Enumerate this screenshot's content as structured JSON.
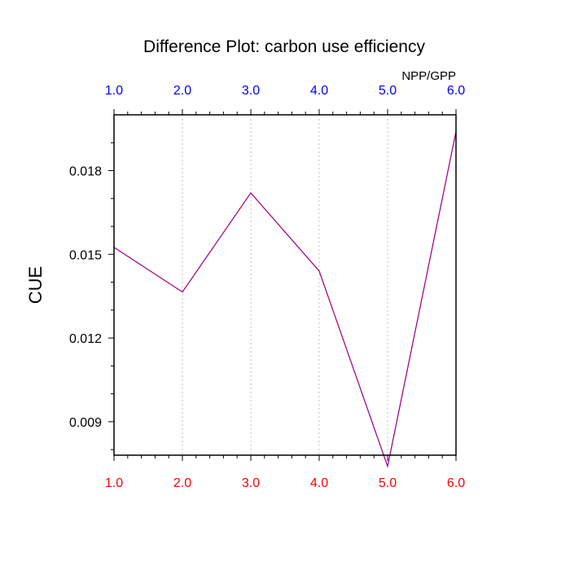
{
  "chart_data": {
    "type": "line",
    "title": "Difference Plot: carbon use efficiency",
    "xlabel": "",
    "ylabel": "CUE",
    "top_axis_annotation": "NPP/GPP",
    "x": [
      1.0,
      2.0,
      3.0,
      4.0,
      5.0,
      6.0
    ],
    "x_tick_labels": [
      "1.0",
      "2.0",
      "3.0",
      "4.0",
      "5.0",
      "6.0"
    ],
    "xlim": [
      1.0,
      6.0
    ],
    "ylim": [
      0.0078,
      0.02
    ],
    "y_ticks": [
      0.009,
      0.012,
      0.015,
      0.018
    ],
    "y_tick_labels": [
      "0.009",
      "0.012",
      "0.015",
      "0.018"
    ],
    "series": [
      {
        "values": [
          0.01525,
          0.01365,
          0.0172,
          0.0144,
          0.0074,
          0.0194
        ]
      }
    ],
    "grid": "vertical dotted",
    "colors": {
      "line": "#6a00c8",
      "line_dash": "#ff0000",
      "bottom_ticks": "#ff0000",
      "top_ticks": "#0000ff",
      "grid": "#c0c0c0"
    }
  }
}
